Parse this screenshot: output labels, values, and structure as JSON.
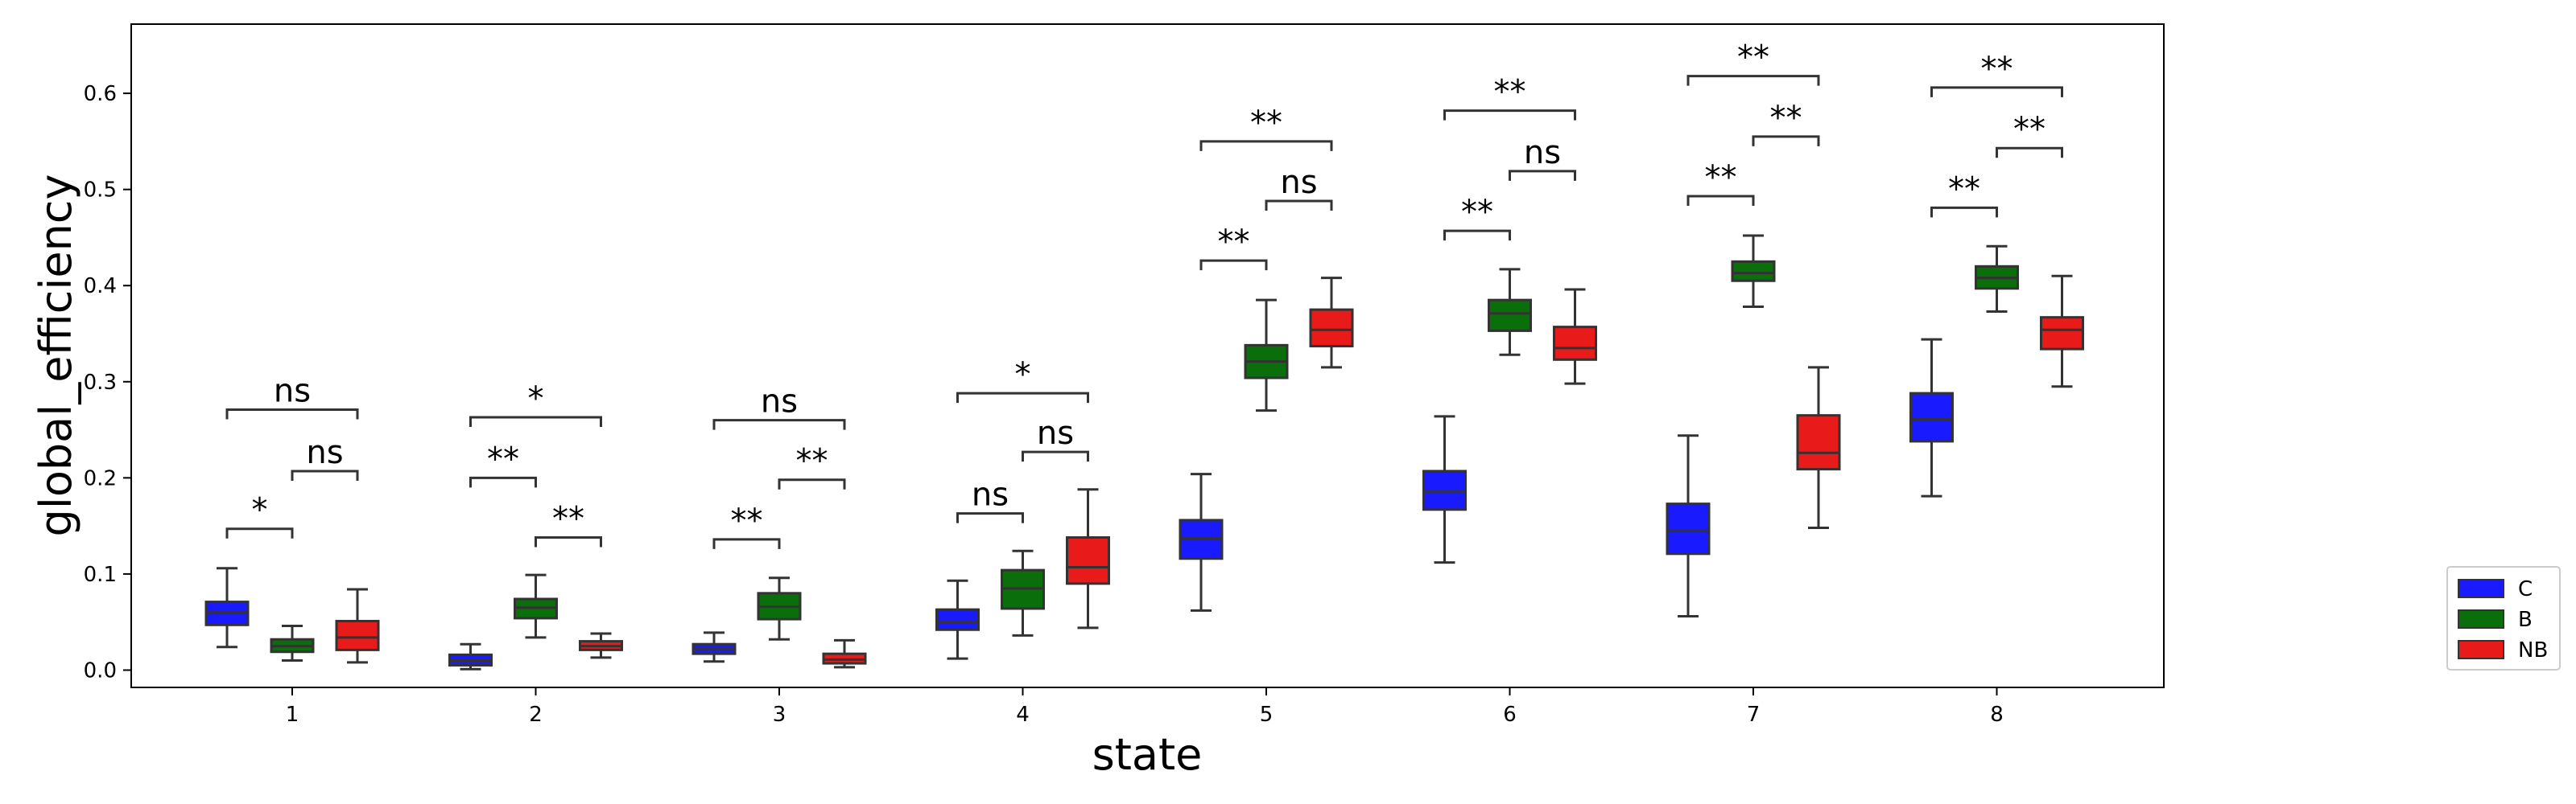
{
  "chart_data": {
    "type": "box",
    "xlabel": "state",
    "ylabel": "global_efficiency",
    "ylim": [
      -0.018,
      0.672
    ],
    "yticks": [
      0.0,
      0.1,
      0.2,
      0.3,
      0.4,
      0.5,
      0.6
    ],
    "ytick_labels": [
      "0.0",
      "0.1",
      "0.2",
      "0.3",
      "0.4",
      "0.5",
      "0.6"
    ],
    "categories": [
      "1",
      "2",
      "3",
      "4",
      "5",
      "6",
      "7",
      "8"
    ],
    "legend": {
      "placement": "right, outside plot"
    },
    "series": [
      {
        "name": "C",
        "color": "#1a1aff",
        "boxes": [
          {
            "whislo": 0.024,
            "q1": 0.047,
            "med": 0.06,
            "q3": 0.071,
            "whishi": 0.106
          },
          {
            "whislo": 0.001,
            "q1": 0.005,
            "med": 0.01,
            "q3": 0.016,
            "whishi": 0.027
          },
          {
            "whislo": 0.009,
            "q1": 0.017,
            "med": 0.022,
            "q3": 0.027,
            "whishi": 0.039
          },
          {
            "whislo": 0.012,
            "q1": 0.042,
            "med": 0.05,
            "q3": 0.063,
            "whishi": 0.093
          },
          {
            "whislo": 0.062,
            "q1": 0.116,
            "med": 0.137,
            "q3": 0.156,
            "whishi": 0.204
          },
          {
            "whislo": 0.112,
            "q1": 0.167,
            "med": 0.186,
            "q3": 0.207,
            "whishi": 0.264
          },
          {
            "whislo": 0.056,
            "q1": 0.121,
            "med": 0.145,
            "q3": 0.173,
            "whishi": 0.244
          },
          {
            "whislo": 0.181,
            "q1": 0.238,
            "med": 0.261,
            "q3": 0.288,
            "whishi": 0.344
          }
        ]
      },
      {
        "name": "B",
        "color": "#0a6e0a",
        "boxes": [
          {
            "whislo": 0.01,
            "q1": 0.019,
            "med": 0.025,
            "q3": 0.032,
            "whishi": 0.046
          },
          {
            "whislo": 0.034,
            "q1": 0.054,
            "med": 0.065,
            "q3": 0.074,
            "whishi": 0.099
          },
          {
            "whislo": 0.032,
            "q1": 0.053,
            "med": 0.066,
            "q3": 0.08,
            "whishi": 0.096
          },
          {
            "whislo": 0.036,
            "q1": 0.064,
            "med": 0.085,
            "q3": 0.104,
            "whishi": 0.124
          },
          {
            "whislo": 0.27,
            "q1": 0.304,
            "med": 0.321,
            "q3": 0.338,
            "whishi": 0.385
          },
          {
            "whislo": 0.328,
            "q1": 0.353,
            "med": 0.371,
            "q3": 0.385,
            "whishi": 0.417
          },
          {
            "whislo": 0.378,
            "q1": 0.405,
            "med": 0.413,
            "q3": 0.425,
            "whishi": 0.452
          },
          {
            "whislo": 0.373,
            "q1": 0.397,
            "med": 0.408,
            "q3": 0.42,
            "whishi": 0.441
          }
        ]
      },
      {
        "name": "NB",
        "color": "#e81a1a",
        "boxes": [
          {
            "whislo": 0.008,
            "q1": 0.021,
            "med": 0.034,
            "q3": 0.051,
            "whishi": 0.084
          },
          {
            "whislo": 0.013,
            "q1": 0.021,
            "med": 0.025,
            "q3": 0.03,
            "whishi": 0.038
          },
          {
            "whislo": 0.003,
            "q1": 0.007,
            "med": 0.011,
            "q3": 0.017,
            "whishi": 0.031
          },
          {
            "whislo": 0.044,
            "q1": 0.09,
            "med": 0.107,
            "q3": 0.138,
            "whishi": 0.188
          },
          {
            "whislo": 0.315,
            "q1": 0.337,
            "med": 0.354,
            "q3": 0.375,
            "whishi": 0.408
          },
          {
            "whislo": 0.298,
            "q1": 0.323,
            "med": 0.335,
            "q3": 0.357,
            "whishi": 0.396
          },
          {
            "whislo": 0.148,
            "q1": 0.209,
            "med": 0.226,
            "q3": 0.265,
            "whishi": 0.315
          },
          {
            "whislo": 0.295,
            "q1": 0.334,
            "med": 0.354,
            "q3": 0.367,
            "whishi": 0.41
          }
        ]
      }
    ],
    "annotations": [
      {
        "state": "1",
        "from": "C",
        "to": "B",
        "y": 0.147,
        "label": "*"
      },
      {
        "state": "1",
        "from": "B",
        "to": "NB",
        "y": 0.207,
        "label": "ns"
      },
      {
        "state": "1",
        "from": "C",
        "to": "NB",
        "y": 0.271,
        "label": "ns"
      },
      {
        "state": "2",
        "from": "C",
        "to": "B",
        "y": 0.2,
        "label": "**"
      },
      {
        "state": "2",
        "from": "B",
        "to": "NB",
        "y": 0.138,
        "label": "**"
      },
      {
        "state": "2",
        "from": "C",
        "to": "NB",
        "y": 0.263,
        "label": "*"
      },
      {
        "state": "3",
        "from": "C",
        "to": "B",
        "y": 0.136,
        "label": "**"
      },
      {
        "state": "3",
        "from": "B",
        "to": "NB",
        "y": 0.198,
        "label": "**"
      },
      {
        "state": "3",
        "from": "C",
        "to": "NB",
        "y": 0.26,
        "label": "ns"
      },
      {
        "state": "4",
        "from": "C",
        "to": "B",
        "y": 0.163,
        "label": "ns"
      },
      {
        "state": "4",
        "from": "B",
        "to": "NB",
        "y": 0.227,
        "label": "ns"
      },
      {
        "state": "4",
        "from": "C",
        "to": "NB",
        "y": 0.288,
        "label": "*"
      },
      {
        "state": "5",
        "from": "C",
        "to": "B",
        "y": 0.426,
        "label": "**"
      },
      {
        "state": "5",
        "from": "B",
        "to": "NB",
        "y": 0.488,
        "label": "ns"
      },
      {
        "state": "5",
        "from": "C",
        "to": "NB",
        "y": 0.55,
        "label": "**"
      },
      {
        "state": "6",
        "from": "C",
        "to": "B",
        "y": 0.457,
        "label": "**"
      },
      {
        "state": "6",
        "from": "B",
        "to": "NB",
        "y": 0.519,
        "label": "ns"
      },
      {
        "state": "6",
        "from": "C",
        "to": "NB",
        "y": 0.582,
        "label": "**"
      },
      {
        "state": "7",
        "from": "C",
        "to": "B",
        "y": 0.493,
        "label": "**"
      },
      {
        "state": "7",
        "from": "B",
        "to": "NB",
        "y": 0.555,
        "label": "**"
      },
      {
        "state": "7",
        "from": "C",
        "to": "NB",
        "y": 0.618,
        "label": "**"
      },
      {
        "state": "8",
        "from": "C",
        "to": "B",
        "y": 0.481,
        "label": "**"
      },
      {
        "state": "8",
        "from": "B",
        "to": "NB",
        "y": 0.543,
        "label": "**"
      },
      {
        "state": "8",
        "from": "C",
        "to": "NB",
        "y": 0.606,
        "label": "**"
      }
    ]
  }
}
